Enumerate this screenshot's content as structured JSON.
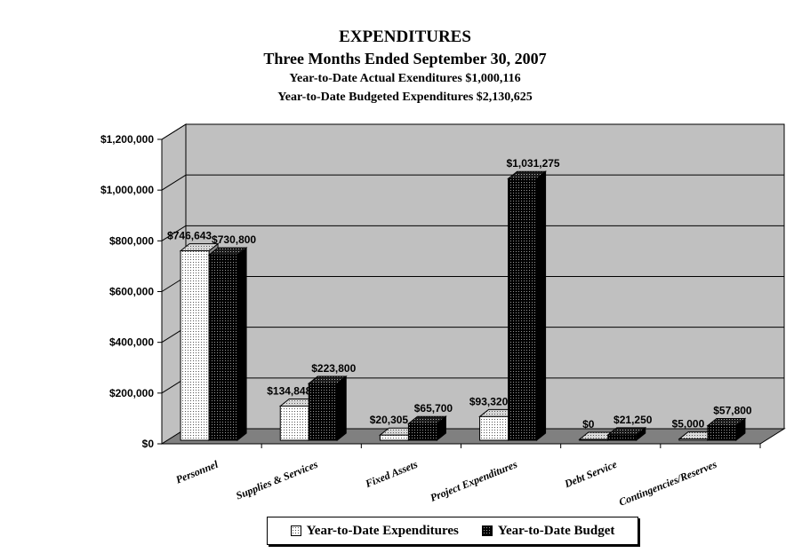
{
  "chart_data": {
    "type": "bar",
    "title": "EXPENDITURES",
    "subtitle": "Three Months Ended September 30, 2007",
    "notes": [
      "Year-to-Date Actual Exenditures $1,000,116",
      "Year-to-Date Budgeted Expenditures $2,130,625"
    ],
    "categories": [
      "Personnel",
      "Supplies & Services",
      "Fixed Assets",
      "Project Expenditures",
      "Debt Service",
      "Contingencies/Reserves"
    ],
    "series": [
      {
        "name": "Year-to-Date Expenditures",
        "values": [
          746643,
          134848,
          20305,
          93320,
          0,
          5000
        ],
        "labels": [
          "$746,643",
          "$134,848",
          "$20,305",
          "$93,320",
          "$0",
          "$5,000"
        ],
        "color": "#ffffff"
      },
      {
        "name": "Year-to-Date Budget",
        "values": [
          730800,
          223800,
          65700,
          1031275,
          21250,
          57800
        ],
        "labels": [
          "$730,800",
          "$223,800",
          "$65,700",
          "$1,031,275",
          "$21,250",
          "$57,800"
        ],
        "color": "#000000"
      }
    ],
    "ylim": [
      0,
      1200000
    ],
    "yticks": [
      0,
      200000,
      400000,
      600000,
      800000,
      1000000,
      1200000
    ],
    "ytick_labels": [
      "$0",
      "$200,000",
      "$400,000",
      "$600,000",
      "$800,000",
      "$1,000,000",
      "$1,200,000"
    ],
    "xlabel": "",
    "ylabel": "",
    "grid": true,
    "legend_position": "bottom",
    "wall_color": "#c0c0c0",
    "floor_color": "#808080"
  }
}
